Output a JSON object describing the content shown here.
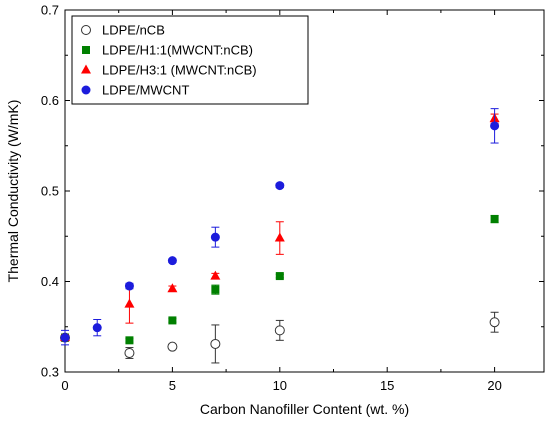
{
  "chart_data": {
    "type": "scatter",
    "xlabel": "Carbon Nanofiller Content  (wt. %)",
    "ylabel": "Thermal Conductivity  (W/mK)",
    "xlim": [
      0,
      22.3
    ],
    "ylim": [
      0.3,
      0.7
    ],
    "xticks": [
      0,
      5,
      10,
      15,
      20
    ],
    "yticks": [
      0.3,
      0.4,
      0.5,
      0.6,
      0.7
    ],
    "xtick_labels": [
      "0",
      "5",
      "10",
      "15",
      "20"
    ],
    "ytick_labels": [
      "0.3",
      "0.4",
      "0.5",
      "0.6",
      "0.7"
    ],
    "grid": false,
    "legend_position": "top-left",
    "series": [
      {
        "name": "LDPE/nCB",
        "marker": "open-circle",
        "color": "#333333",
        "error_color": "#333333",
        "points": [
          {
            "x": 0,
            "y": 0.338,
            "err": 0.004
          },
          {
            "x": 3,
            "y": 0.321,
            "err": 0.006
          },
          {
            "x": 5,
            "y": 0.328,
            "err": 0.002
          },
          {
            "x": 7,
            "y": 0.331,
            "err": 0.021
          },
          {
            "x": 10,
            "y": 0.346,
            "err": 0.011
          },
          {
            "x": 20,
            "y": 0.355,
            "err": 0.011
          }
        ]
      },
      {
        "name": "LDPE/H1:1(MWCNT:nCB)",
        "marker": "square",
        "color": "#008000",
        "error_color": "#008000",
        "points": [
          {
            "x": 0,
            "y": 0.338,
            "err": 0.002
          },
          {
            "x": 3,
            "y": 0.335,
            "err": 0.002
          },
          {
            "x": 5,
            "y": 0.357,
            "err": 0.002
          },
          {
            "x": 7,
            "y": 0.391,
            "err": 0.005
          },
          {
            "x": 10,
            "y": 0.406,
            "err": 0.002
          },
          {
            "x": 20,
            "y": 0.469,
            "err": 0.004
          }
        ]
      },
      {
        "name": "LDPE/H3:1 (MWCNT:nCB)",
        "marker": "triangle",
        "color": "#ff0000",
        "error_color": "#ff0000",
        "points": [
          {
            "x": 0,
            "y": 0.338,
            "err": 0.003
          },
          {
            "x": 3,
            "y": 0.375,
            "err": 0.021
          },
          {
            "x": 5,
            "y": 0.392,
            "err": 0.003
          },
          {
            "x": 7,
            "y": 0.406,
            "err": 0.003
          },
          {
            "x": 10,
            "y": 0.448,
            "err": 0.018
          },
          {
            "x": 20,
            "y": 0.58,
            "err": 0.005
          }
        ]
      },
      {
        "name": "LDPE/MWCNT",
        "marker": "circle",
        "color": "#1c1cdc",
        "error_color": "#1c1cdc",
        "points": [
          {
            "x": 0,
            "y": 0.338,
            "err": 0.008
          },
          {
            "x": 1.5,
            "y": 0.349,
            "err": 0.009
          },
          {
            "x": 3,
            "y": 0.395,
            "err": 0.003
          },
          {
            "x": 5,
            "y": 0.423,
            "err": 0.002
          },
          {
            "x": 7,
            "y": 0.449,
            "err": 0.011
          },
          {
            "x": 10,
            "y": 0.506,
            "err": 0.002
          },
          {
            "x": 20,
            "y": 0.572,
            "err": 0.019
          }
        ]
      }
    ]
  }
}
